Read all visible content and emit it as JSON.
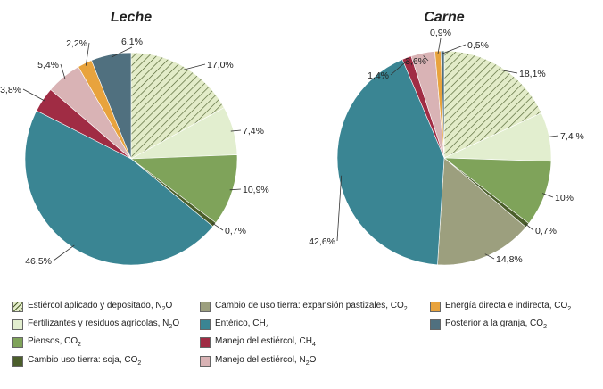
{
  "chart_data": [
    {
      "type": "pie",
      "title": "Leche",
      "slices": [
        {
          "category": "estiercol_n2o",
          "value": 17.0,
          "label": "17,0%"
        },
        {
          "category": "fertilizantes_n2o",
          "value": 7.4,
          "label": "7,4%"
        },
        {
          "category": "piensos_co2",
          "value": 10.9,
          "label": "10,9%"
        },
        {
          "category": "soja_co2",
          "value": 0.7,
          "label": "0,7%"
        },
        {
          "category": "enterico_ch4",
          "value": 46.5,
          "label": "46,5%"
        },
        {
          "category": "manejo_ch4",
          "value": 3.8,
          "label": "3,8%"
        },
        {
          "category": "manejo_n2o",
          "value": 5.4,
          "label": "5,4%"
        },
        {
          "category": "energia_co2",
          "value": 2.2,
          "label": "2,2%"
        },
        {
          "category": "posterior_co2",
          "value": 6.1,
          "label": "6,1%"
        }
      ]
    },
    {
      "type": "pie",
      "title": "Carne",
      "slices": [
        {
          "category": "estiercol_n2o",
          "value": 18.1,
          "label": "18,1%"
        },
        {
          "category": "fertilizantes_n2o",
          "value": 7.4,
          "label": "7,4 %"
        },
        {
          "category": "piensos_co2",
          "value": 10,
          "label": "10%"
        },
        {
          "category": "soja_co2",
          "value": 0.7,
          "label": "0,7%"
        },
        {
          "category": "pastizales_co2",
          "value": 14.8,
          "label": "14,8%"
        },
        {
          "category": "enterico_ch4",
          "value": 42.6,
          "label": "42,6%"
        },
        {
          "category": "manejo_ch4",
          "value": 1.4,
          "label": "1,4%"
        },
        {
          "category": "manejo_n2o",
          "value": 3.6,
          "label": "3,6%"
        },
        {
          "category": "energia_co2",
          "value": 0.9,
          "label": "0,9%"
        },
        {
          "category": "posterior_co2",
          "value": 0.5,
          "label": "0,5%"
        }
      ]
    }
  ],
  "legend": [
    {
      "key": "estiercol_n2o",
      "text": "Estiércol aplicado y depositado, N",
      "sub": "2",
      "tail": "O",
      "color": "#e3ecc9",
      "hatch": true
    },
    {
      "key": "fertilizantes_n2o",
      "text": "Fertilizantes y residuos agrícolas, N",
      "sub": "2",
      "tail": "O",
      "color": "#e2eecf"
    },
    {
      "key": "piensos_co2",
      "text": "Piensos, CO",
      "sub": "2",
      "tail": "",
      "color": "#7fa35a"
    },
    {
      "key": "soja_co2",
      "text": "Cambio uso tierra: soja, CO",
      "sub": "2",
      "tail": "",
      "color": "#4b5e2b"
    },
    {
      "key": "pastizales_co2",
      "text": "Cambio de uso tierra: expansión pastizales, CO",
      "sub": "2",
      "tail": "",
      "color": "#9c9f7e"
    },
    {
      "key": "enterico_ch4",
      "text": "Entérico, CH",
      "sub": "4",
      "tail": "",
      "color": "#3a8593"
    },
    {
      "key": "manejo_ch4",
      "text": "Manejo del estiércol, CH",
      "sub": "4",
      "tail": "",
      "color": "#a02c44"
    },
    {
      "key": "manejo_n2o",
      "text": "Manejo del estiércol, N",
      "sub": "2",
      "tail": "O",
      "color": "#d9b3b5"
    },
    {
      "key": "energia_co2",
      "text": "Energía directa e indirecta, CO",
      "sub": "2",
      "tail": "",
      "color": "#e8a33d"
    },
    {
      "key": "posterior_co2",
      "text": "Posterior a la granja, CO",
      "sub": "2",
      "tail": "",
      "color": "#50707f"
    }
  ]
}
